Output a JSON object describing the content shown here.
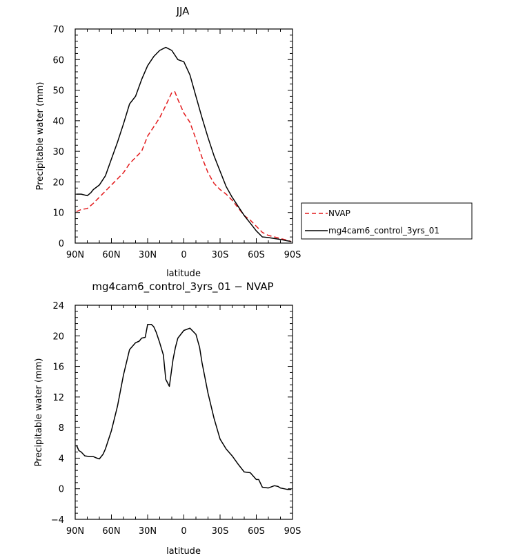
{
  "chart_data": [
    {
      "type": "line",
      "title": "JJA",
      "xlabel": "latitude",
      "ylabel": "Precipitable water (mm)",
      "xlim": [
        -90,
        90
      ],
      "ylim": [
        0,
        70
      ],
      "xticks": [
        -90,
        -60,
        -30,
        0,
        30,
        60,
        90
      ],
      "xtick_labels": [
        "90N",
        "60N",
        "30N",
        "0",
        "30S",
        "60S",
        "90S"
      ],
      "yticks": [
        0,
        10,
        20,
        30,
        40,
        50,
        60,
        70
      ],
      "ytick_labels": [
        "0",
        "10",
        "20",
        "30",
        "40",
        "50",
        "60",
        "70"
      ],
      "legend_position": "right-middle",
      "series": [
        {
          "name": "NVAP",
          "color": "#e31a1c",
          "dash": true,
          "x": [
            -89,
            -85,
            -80,
            -75,
            -70,
            -65,
            -60,
            -55,
            -50,
            -45,
            -40,
            -35,
            -30,
            -25,
            -20,
            -15,
            -10,
            -7.5,
            -5,
            0,
            5,
            10,
            15,
            20,
            25,
            30,
            35,
            40,
            45,
            50,
            55,
            60,
            65,
            70,
            75,
            80,
            85,
            89
          ],
          "y": [
            10.3,
            11,
            11.3,
            13,
            15,
            17,
            19,
            21,
            23,
            26,
            28,
            30,
            35,
            38,
            41,
            45,
            49.2,
            49.5,
            47,
            42.5,
            39.5,
            34,
            28,
            23,
            19.5,
            17.5,
            16,
            14,
            11.5,
            9,
            7.5,
            5.5,
            3.5,
            2.5,
            2,
            1.5,
            1,
            0.5
          ]
        },
        {
          "name": "mg4cam6_control_3yrs_01",
          "color": "#000000",
          "dash": false,
          "x": [
            -89,
            -85,
            -80,
            -77,
            -75,
            -70,
            -65,
            -60,
            -55,
            -50,
            -45,
            -40,
            -35,
            -30,
            -25,
            -20,
            -15,
            -10,
            -5,
            0,
            5,
            10,
            15,
            20,
            25,
            30,
            35,
            40,
            45,
            50,
            55,
            60,
            65,
            70,
            75,
            80,
            85,
            89
          ],
          "y": [
            16,
            16,
            15.5,
            16.5,
            17.5,
            19,
            22,
            27.5,
            33,
            39,
            45.5,
            48,
            53.5,
            58,
            61,
            63,
            64,
            63,
            60,
            59.3,
            55,
            48,
            41,
            34.5,
            28.5,
            23.5,
            18.5,
            15,
            12,
            9,
            6.5,
            4,
            2,
            1.8,
            1.5,
            1.2,
            0.8,
            0.5
          ]
        }
      ]
    },
    {
      "type": "line",
      "title": "mg4cam6_control_3yrs_01 − NVAP",
      "xlabel": "latitude",
      "ylabel": "Precipitable water (mm)",
      "xlim": [
        -90,
        90
      ],
      "ylim": [
        -4,
        24
      ],
      "xticks": [
        -90,
        -60,
        -30,
        0,
        30,
        60,
        90
      ],
      "xtick_labels": [
        "90N",
        "60N",
        "30N",
        "0",
        "30S",
        "60S",
        "90S"
      ],
      "yticks": [
        -4,
        0,
        4,
        8,
        12,
        16,
        20,
        24
      ],
      "ytick_labels": [
        "−4",
        "0",
        "4",
        "8",
        "12",
        "16",
        "20",
        "24"
      ],
      "series": [
        {
          "name": "mg4cam6_control_3yrs_01 − NVAP",
          "color": "#000000",
          "dash": false,
          "x": [
            -89,
            -87,
            -85,
            -82,
            -78,
            -75,
            -72,
            -70,
            -67,
            -65,
            -60,
            -55,
            -50,
            -45,
            -40,
            -37,
            -35,
            -32,
            -30,
            -27,
            -25,
            -23,
            -20,
            -17,
            -15,
            -12,
            -9,
            -7,
            -5,
            0,
            5,
            10,
            13,
            15,
            20,
            25,
            30,
            35,
            40,
            45,
            50,
            55,
            60,
            62,
            65,
            70,
            75,
            78,
            80,
            83,
            86,
            89
          ],
          "y": [
            5.7,
            5,
            4.8,
            4.3,
            4.2,
            4.2,
            4.0,
            3.9,
            4.5,
            5.2,
            7.6,
            10.8,
            14.9,
            18.2,
            19.1,
            19.3,
            19.7,
            19.8,
            21.5,
            21.5,
            21.2,
            20.5,
            19.1,
            17.5,
            14.3,
            13.4,
            16.9,
            18.5,
            19.7,
            20.7,
            21.0,
            20.2,
            18.5,
            16.5,
            12.5,
            9.2,
            6.5,
            5.2,
            4.3,
            3.2,
            2.2,
            2.1,
            1.2,
            1.2,
            0.2,
            0.1,
            0.4,
            0.3,
            0.1,
            0.0,
            -0.1,
            -0.1
          ]
        }
      ]
    }
  ]
}
